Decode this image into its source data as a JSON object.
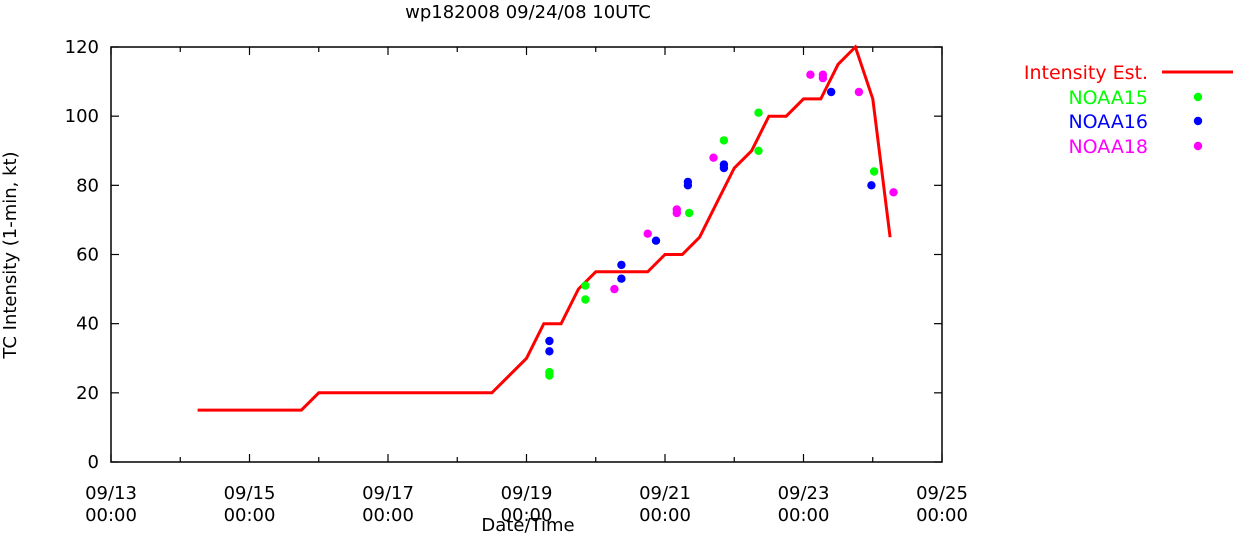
{
  "chart_data": {
    "type": "line",
    "title": "wp182008 09/24/08 10UTC",
    "xlabel": "Date/Time",
    "ylabel": "TC Intensity (1-min, kt)",
    "xlim_days": [
      13,
      25
    ],
    "ylim": [
      0,
      120
    ],
    "y_ticks": [
      "0",
      "20",
      "40",
      "60",
      "80",
      "100",
      "120"
    ],
    "x_ticks": [
      {
        "day": 13,
        "date": "09/13",
        "time": "00:00"
      },
      {
        "day": 15,
        "date": "09/15",
        "time": "00:00"
      },
      {
        "day": 17,
        "date": "09/17",
        "time": "00:00"
      },
      {
        "day": 19,
        "date": "09/19",
        "time": "00:00"
      },
      {
        "day": 21,
        "date": "09/21",
        "time": "00:00"
      },
      {
        "day": 23,
        "date": "09/23",
        "time": "00:00"
      },
      {
        "day": 25,
        "date": "09/25",
        "time": "00:00"
      }
    ],
    "x_minor_ticks_days": [
      14,
      16,
      18,
      20,
      22,
      24
    ],
    "grid": false,
    "legend_position": "outside-right",
    "series": [
      {
        "name": "Intensity Est.",
        "type": "line",
        "color": "#ff0000",
        "points": [
          [
            14.25,
            15
          ],
          [
            15.75,
            15
          ],
          [
            16.0,
            20
          ],
          [
            18.0,
            20
          ],
          [
            18.5,
            20
          ],
          [
            19.0,
            30
          ],
          [
            19.25,
            40
          ],
          [
            19.5,
            40
          ],
          [
            19.75,
            50
          ],
          [
            20.0,
            55
          ],
          [
            20.5,
            55
          ],
          [
            20.75,
            55
          ],
          [
            21.0,
            60
          ],
          [
            21.25,
            60
          ],
          [
            21.5,
            65
          ],
          [
            21.75,
            75
          ],
          [
            22.0,
            85
          ],
          [
            22.25,
            90
          ],
          [
            22.5,
            100
          ],
          [
            22.75,
            100
          ],
          [
            23.0,
            105
          ],
          [
            23.25,
            105
          ],
          [
            23.5,
            115
          ],
          [
            23.75,
            120
          ],
          [
            24.0,
            105
          ],
          [
            24.25,
            65
          ]
        ]
      },
      {
        "name": "NOAA15",
        "type": "scatter",
        "color": "#00ff00",
        "points": [
          [
            19.33,
            25
          ],
          [
            19.33,
            26
          ],
          [
            19.85,
            47
          ],
          [
            19.85,
            51
          ],
          [
            21.35,
            72
          ],
          [
            21.85,
            93
          ],
          [
            22.35,
            90
          ],
          [
            22.35,
            101
          ],
          [
            24.02,
            84
          ]
        ]
      },
      {
        "name": "NOAA16",
        "type": "scatter",
        "color": "#0000ff",
        "points": [
          [
            19.33,
            32
          ],
          [
            19.33,
            35
          ],
          [
            20.37,
            53
          ],
          [
            20.37,
            57
          ],
          [
            20.87,
            64
          ],
          [
            21.33,
            80
          ],
          [
            21.33,
            81
          ],
          [
            21.85,
            85
          ],
          [
            21.85,
            86
          ],
          [
            23.4,
            107
          ],
          [
            23.98,
            80
          ]
        ]
      },
      {
        "name": "NOAA18",
        "type": "scatter",
        "color": "#ff00ff",
        "points": [
          [
            20.27,
            50
          ],
          [
            20.75,
            66
          ],
          [
            21.17,
            72
          ],
          [
            21.17,
            73
          ],
          [
            21.7,
            88
          ],
          [
            23.1,
            112
          ],
          [
            23.28,
            111
          ],
          [
            23.28,
            112
          ],
          [
            23.8,
            107
          ],
          [
            24.3,
            78
          ]
        ]
      }
    ]
  }
}
